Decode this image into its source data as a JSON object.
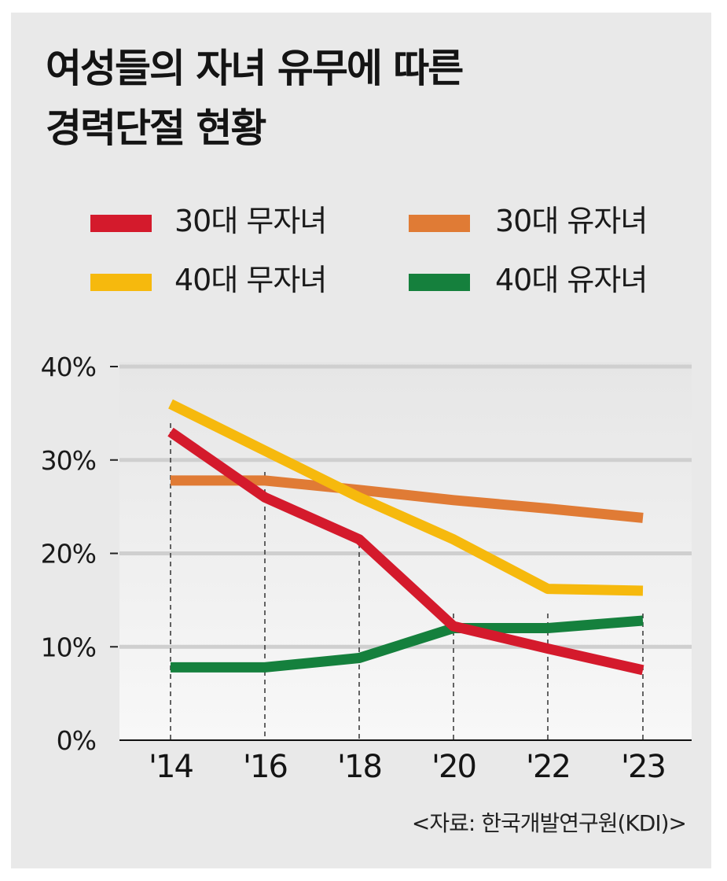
{
  "title": {
    "line1": "여성들의 자녀 유무에 따른",
    "line2": "경력단절 현황"
  },
  "source": "<자료: 한국개발연구원(KDI)>",
  "chart_data": {
    "type": "line",
    "title": "여성들의 자녀 유무에 따른 경력단절 현황",
    "xlabel": "",
    "ylabel": "",
    "categories": [
      "'14",
      "'16",
      "'18",
      "'20",
      "'22",
      "'23"
    ],
    "y_ticks": [
      0,
      10,
      20,
      30,
      40
    ],
    "y_tick_labels": [
      "0%",
      "10%",
      "20%",
      "30%",
      "40%"
    ],
    "ylim": [
      0,
      40
    ],
    "grid": true,
    "legend_position": "top",
    "series": [
      {
        "name": "30대 무자녀",
        "color": "#d41a2c",
        "values": [
          33.0,
          26.0,
          21.5,
          12.2,
          9.8,
          7.5
        ]
      },
      {
        "name": "30대 유자녀",
        "color": "#e07b35",
        "values": [
          27.8,
          27.8,
          26.8,
          25.7,
          24.8,
          23.8
        ]
      },
      {
        "name": "40대 무자녀",
        "color": "#f6b90d",
        "values": [
          36.0,
          31.0,
          26.0,
          21.5,
          16.2,
          16.0
        ]
      },
      {
        "name": "40대 유자녀",
        "color": "#15803d",
        "values": [
          7.8,
          7.8,
          8.8,
          12.0,
          12.0,
          12.8
        ]
      }
    ]
  }
}
